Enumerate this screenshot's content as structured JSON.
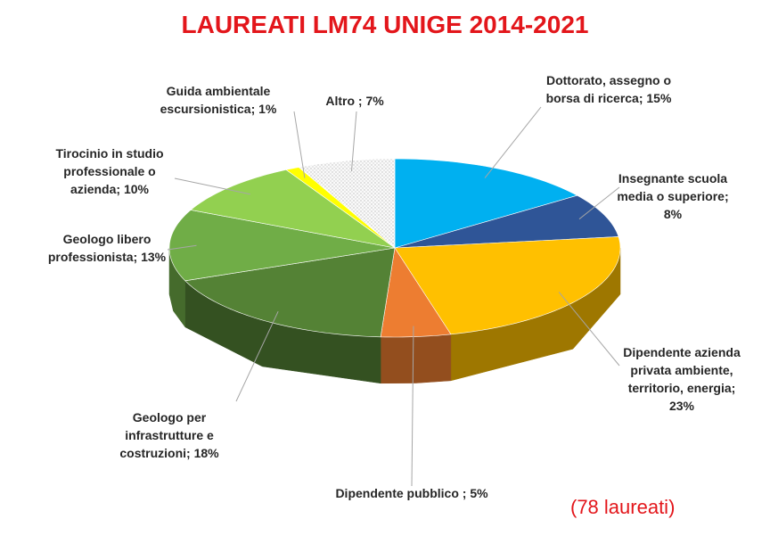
{
  "chart_data": {
    "type": "pie",
    "title": "LAUREATI LM74 UNIGE 2014-2021",
    "annotation": "(78 laureati)",
    "categories": [
      "Dottorato, assegno o borsa di ricerca;",
      "Insegnante scuola media o superiore;",
      "Dipendente azienda privata ambiente, territorio, energia;",
      "Dipendente pubblico ;",
      "Geologo per infrastrutture e costruzioni;",
      "Geologo libero professionista;",
      "Tirocinio in studio professionale o azienda;",
      "Guida ambientale escursionistica;",
      "Altro ;"
    ],
    "values": [
      15,
      8,
      23,
      5,
      18,
      13,
      10,
      1,
      7
    ],
    "value_labels": [
      "15%",
      "8%",
      "23%",
      "5%",
      "18%",
      "13%",
      "10%",
      "1%",
      "7%"
    ],
    "colors": [
      "#00b0f0",
      "#2f5597",
      "#ffc000",
      "#ed7d31",
      "#548235",
      "#70ad47",
      "#92d050",
      "#ffff00",
      "#f2f2f2"
    ]
  }
}
